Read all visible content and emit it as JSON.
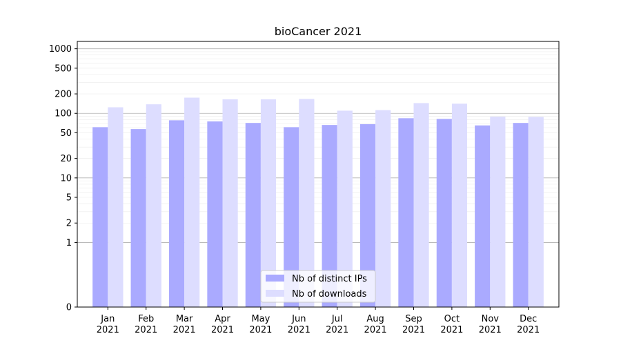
{
  "chart_data": {
    "type": "bar",
    "title": "bioCancer 2021",
    "xlabel": "",
    "ylabel": "",
    "scale": "symlog",
    "categories": [
      "Jan\n2021",
      "Feb\n2021",
      "Mar\n2021",
      "Apr\n2021",
      "May\n2021",
      "Jun\n2021",
      "Jul\n2021",
      "Aug\n2021",
      "Sep\n2021",
      "Oct\n2021",
      "Nov\n2021",
      "Dec\n2021"
    ],
    "yticks": [
      {
        "value": 0,
        "label": "0"
      },
      {
        "value": 1,
        "label": "1"
      },
      {
        "value": 2,
        "label": "2"
      },
      {
        "value": 5,
        "label": "5"
      },
      {
        "value": 10,
        "label": "10"
      },
      {
        "value": 20,
        "label": "20"
      },
      {
        "value": 50,
        "label": "50"
      },
      {
        "value": 100,
        "label": "100"
      },
      {
        "value": 200,
        "label": "200"
      },
      {
        "value": 500,
        "label": "500"
      },
      {
        "value": 1000,
        "label": "1000"
      }
    ],
    "ylim": [
      0,
      1300
    ],
    "series": [
      {
        "name": "Nb of distinct IPs",
        "color": "#aaaaff",
        "values": [
          61,
          57,
          78,
          75,
          71,
          61,
          66,
          68,
          84,
          82,
          65,
          71
        ]
      },
      {
        "name": "Nb of downloads",
        "color": "#ddddff",
        "values": [
          124,
          138,
          175,
          165,
          165,
          167,
          110,
          112,
          144,
          141,
          89,
          88
        ]
      }
    ],
    "grid": true,
    "legend_position": "bottom-center"
  }
}
